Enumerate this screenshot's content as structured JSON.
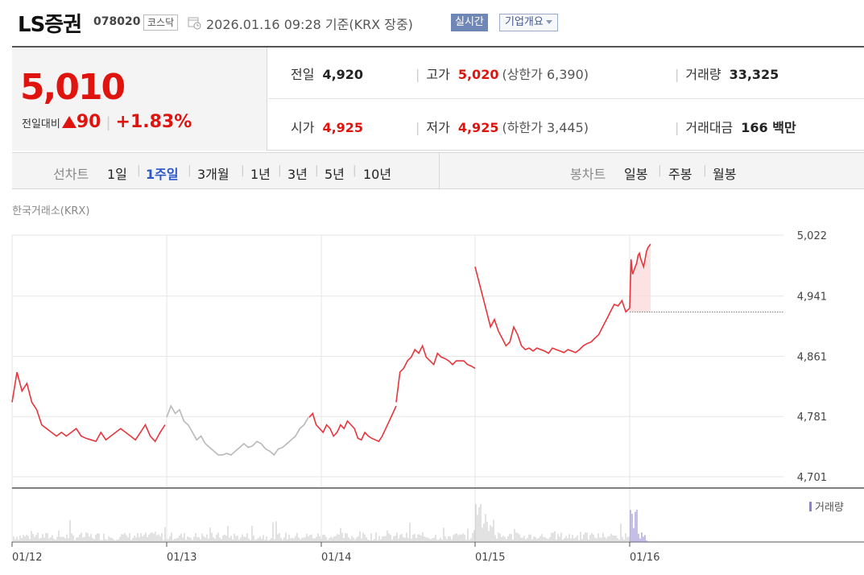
{
  "header": {
    "name": "LS증권",
    "code": "078020",
    "market": "코스닥",
    "timestamp": "2026.01.16 09:28 기준(KRX 장중)",
    "live_label": "실시간",
    "overview_label": "기업개요"
  },
  "price": {
    "current": "5,010",
    "change_label": "전일대비",
    "change_amount": "90",
    "change_percent": "+1.83%",
    "prev_close_label": "전일",
    "prev_close": "4,920",
    "high_label": "고가",
    "high": "5,020",
    "upper_limit": "(상한가 6,390)",
    "volume_label": "거래량",
    "volume": "33,325",
    "open_label": "시가",
    "open": "4,925",
    "low_label": "저가",
    "low": "4,925",
    "lower_limit": "(하한가 3,445)",
    "value_label": "거래대금",
    "value": "166 백만"
  },
  "tabs": {
    "line_label": "선차트",
    "periods": [
      "1일",
      "1주일",
      "3개월",
      "1년",
      "3년",
      "5년",
      "10년"
    ],
    "active_period": "1주일",
    "candle_label": "봉차트",
    "candles": [
      "일봉",
      "주봉",
      "월봉"
    ]
  },
  "chart_data": {
    "type": "line",
    "exchange_label": "한국거래소(KRX)",
    "y_ticks": [
      "5,022",
      "4,941",
      "4,861",
      "4,781",
      "4,701"
    ],
    "ylim": [
      4701,
      5022
    ],
    "x_ticks": [
      "01/12",
      "01/13",
      "01/14",
      "01/15",
      "01/16"
    ],
    "reference_price": 4920,
    "volume_legend": "거래량",
    "colors": {
      "line": "#e8343a",
      "offhours_line": "#b8b8b8",
      "volume": "#c4c4c4",
      "volume_today": "#8b7fd0",
      "grid": "#e6e6e6"
    },
    "segments": [
      {
        "day": "01/12",
        "style": "session",
        "values": [
          4800,
          4840,
          4815,
          4825,
          4800,
          4790,
          4770,
          4765,
          4760,
          4755,
          4760,
          4755,
          4760,
          4765,
          4755,
          4752,
          4750,
          4748,
          4760,
          4750,
          4755,
          4760,
          4765,
          4760,
          4755,
          4750,
          4760,
          4770,
          4755,
          4748,
          4760,
          4770
        ]
      },
      {
        "day": "01/12",
        "style": "offhours",
        "values": [
          4780,
          4795,
          4785,
          4790,
          4775,
          4770,
          4760,
          4750,
          4755,
          4745,
          4740,
          4735,
          4730,
          4730,
          4732,
          4730,
          4735,
          4740,
          4745,
          4740,
          4742,
          4748,
          4745,
          4738,
          4735,
          4730,
          4738,
          4740,
          4745,
          4750,
          4755,
          4765,
          4770,
          4780
        ]
      },
      {
        "day": "01/13",
        "style": "session",
        "values": [
          4780,
          4785,
          4770,
          4765,
          4760,
          4770,
          4765,
          4755,
          4760,
          4770,
          4765,
          4775,
          4770,
          4765,
          4752,
          4750,
          4760,
          4755,
          4752,
          4750,
          4748,
          4755,
          4765,
          4775,
          4785,
          4795
        ]
      },
      {
        "day": "01/14",
        "style": "session",
        "values": [
          4800,
          4840,
          4845,
          4855,
          4860,
          4870,
          4865,
          4875,
          4860,
          4855,
          4850,
          4865,
          4860,
          4858,
          4855,
          4850,
          4855,
          4855,
          4855,
          4850,
          4848,
          4845
        ]
      },
      {
        "day": "01/15",
        "style": "session",
        "values": [
          4980,
          4960,
          4940,
          4920,
          4900,
          4910,
          4895,
          4885,
          4875,
          4880,
          4900,
          4890,
          4875,
          4870,
          4872,
          4868,
          4872,
          4870,
          4868,
          4865,
          4872,
          4870,
          4868,
          4866,
          4870,
          4868,
          4866,
          4870,
          4875,
          4878,
          4880,
          4885,
          4890,
          4900,
          4910,
          4920,
          4930,
          4928,
          4935,
          4920,
          4925
        ]
      },
      {
        "day": "01/16",
        "style": "session",
        "values": [
          4925,
          4990,
          4970,
          4975,
          4980,
          4985,
          4995,
          4998,
          4990,
          4985,
          4980,
          4990,
          5000,
          5005,
          5008,
          5010
        ]
      }
    ]
  }
}
